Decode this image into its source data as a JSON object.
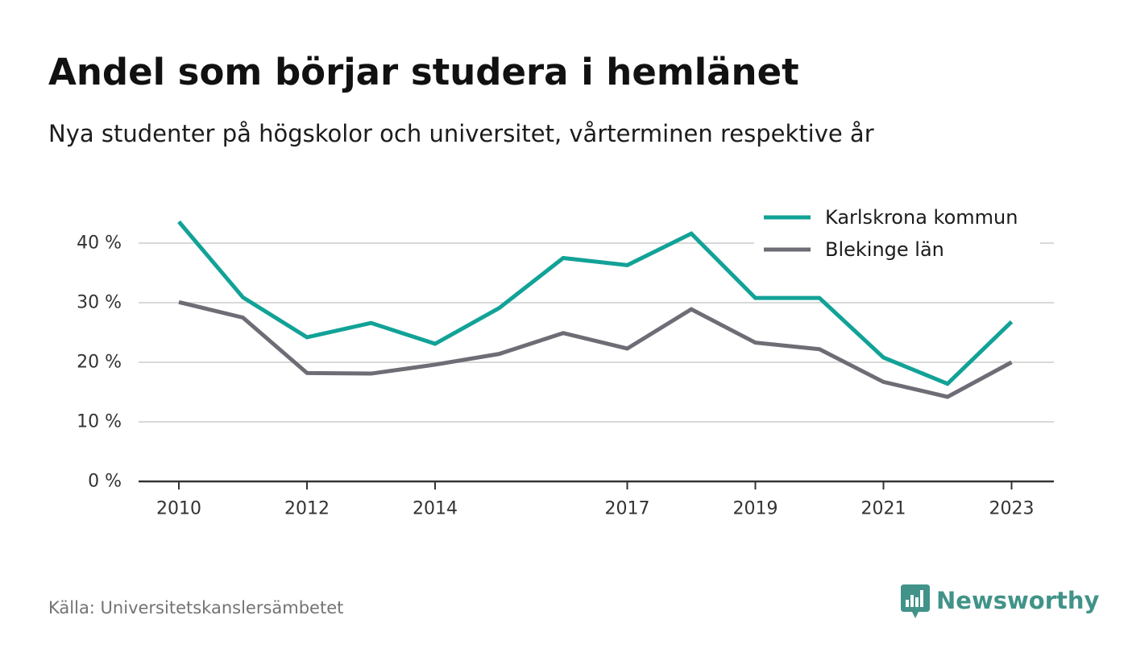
{
  "header": {
    "title": "Andel som börjar studera i hemlänet",
    "subtitle": "Nya studenter på högskolor och universitet, vårterminen respektive år"
  },
  "footer": {
    "source": "Källa: Universitetskanslersämbetet",
    "brand": "Newsworthy",
    "brand_icon": "newsworthy-logo-icon"
  },
  "colors": {
    "Karlskrona kommun": "#12a297",
    "Blekinge län": "#6e6d75",
    "grid": "#d9d9d9",
    "axis": "#333333",
    "brand": "#419389"
  },
  "chart_data": {
    "type": "line",
    "x": [
      2010,
      2011,
      2012,
      2013,
      2014,
      2015,
      2016,
      2017,
      2018,
      2019,
      2020,
      2021,
      2022,
      2023
    ],
    "x_tick_labels": [
      "2010",
      "2012",
      "2014",
      "2017",
      "2019",
      "2021",
      "2023"
    ],
    "y_tick_labels": [
      "0 %",
      "10 %",
      "20 %",
      "30 %",
      "40 %"
    ],
    "ylim": [
      0,
      45
    ],
    "yticks": [
      0,
      10,
      20,
      30,
      40
    ],
    "grid": true,
    "legend_position": "top-right",
    "series": [
      {
        "name": "Karlskrona kommun",
        "values": [
          43.6,
          30.9,
          24.2,
          26.6,
          23.1,
          29.1,
          37.5,
          36.3,
          41.6,
          30.8,
          30.8,
          20.8,
          16.4,
          26.8
        ]
      },
      {
        "name": "Blekinge län",
        "values": [
          30.1,
          27.5,
          18.2,
          18.1,
          19.6,
          21.4,
          24.9,
          22.3,
          28.9,
          23.3,
          22.2,
          16.7,
          14.2,
          20.0
        ]
      }
    ]
  }
}
